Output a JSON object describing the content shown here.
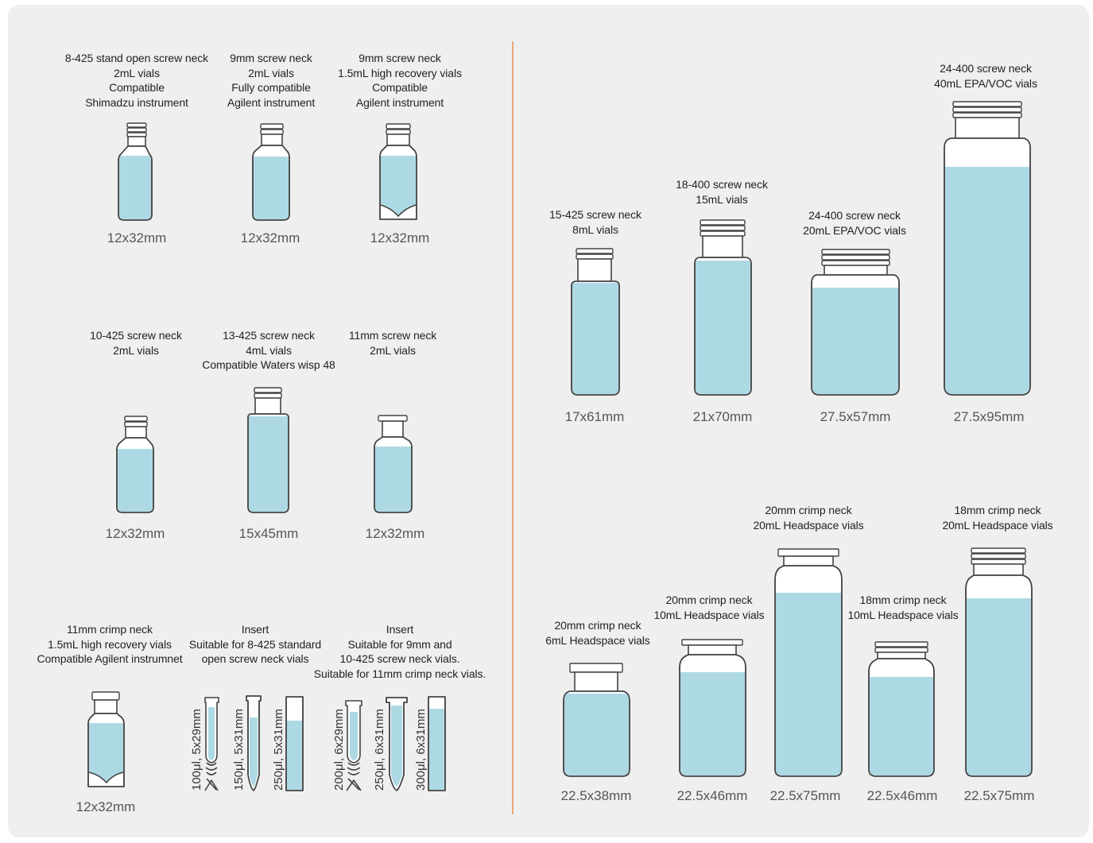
{
  "vials": [
    {
      "id": "v1",
      "lines": [
        "8-425 stand open screw neck",
        "2mL vials",
        "Compatible",
        "Shimadzu instrument"
      ],
      "size": "12x32mm"
    },
    {
      "id": "v2",
      "lines": [
        "9mm screw neck",
        "2mL vials",
        "Fully compatible",
        "Agilent instrument"
      ],
      "size": "12x32mm"
    },
    {
      "id": "v3",
      "lines": [
        "9mm screw neck",
        "1.5mL high recovery vials",
        "Compatible",
        "Agilent instrument"
      ],
      "size": "12x32mm"
    },
    {
      "id": "v4",
      "lines": [
        "10-425 screw neck",
        "2mL vials"
      ],
      "size": "12x32mm"
    },
    {
      "id": "v5",
      "lines": [
        "13-425 screw neck",
        "4mL vials",
        "Compatible Waters wisp 48"
      ],
      "size": "15x45mm"
    },
    {
      "id": "v6",
      "lines": [
        "11mm screw neck",
        "2mL vials"
      ],
      "size": "12x32mm"
    },
    {
      "id": "v7",
      "lines": [
        "11mm crimp neck",
        "1.5mL high recovery vials",
        "Compatible Agilent instrumnet"
      ],
      "size": "12x32mm"
    },
    {
      "id": "v8",
      "lines": [
        "Insert",
        "Suitable for 8-425 standard",
        "open screw neck vials"
      ],
      "size": ""
    },
    {
      "id": "v9",
      "lines": [
        "Insert",
        "Suitable for 9mm and",
        "10-425 screw neck vials.",
        "Suitable for 11mm crimp neck vials."
      ],
      "size": ""
    },
    {
      "id": "v10",
      "lines": [
        "15-425 screw neck",
        "8mL vials"
      ],
      "size": "17x61mm"
    },
    {
      "id": "v11",
      "lines": [
        "18-400 screw neck",
        "15mL vials"
      ],
      "size": "21x70mm"
    },
    {
      "id": "v12",
      "lines": [
        "24-400 screw neck",
        "20mL EPA/VOC vials"
      ],
      "size": "27.5x57mm"
    },
    {
      "id": "v13",
      "lines": [
        "24-400 screw neck",
        "40mL EPA/VOC vials"
      ],
      "size": "27.5x95mm"
    },
    {
      "id": "v14",
      "lines": [
        "20mm crimp neck",
        "6mL Headspace vials"
      ],
      "size": "22.5x38mm"
    },
    {
      "id": "v15",
      "lines": [
        "20mm crimp neck",
        "10mL Headspace vials"
      ],
      "size": "22.5x46mm"
    },
    {
      "id": "v16",
      "lines": [
        "20mm crimp neck",
        "20mL Headspace vials"
      ],
      "size": "22.5x75mm"
    },
    {
      "id": "v17",
      "lines": [
        "18mm crimp neck",
        "10mL Headspace vials"
      ],
      "size": "22.5x46mm"
    },
    {
      "id": "v18",
      "lines": [
        "18mm crimp neck",
        "20mL Headspace vials"
      ],
      "size": "22.5x75mm"
    }
  ],
  "inserts": [
    "100μl, 5x29mm",
    "150μl, 5x31mm",
    "250μl, 5x31mm",
    "200μl, 6x29mm",
    "250μl, 6x31mm",
    "300μl, 6x31mm"
  ],
  "colors": {
    "panel": "#efefef",
    "liquid": "#add9e4",
    "outline": "#444444",
    "divider": "#e8a77a"
  }
}
